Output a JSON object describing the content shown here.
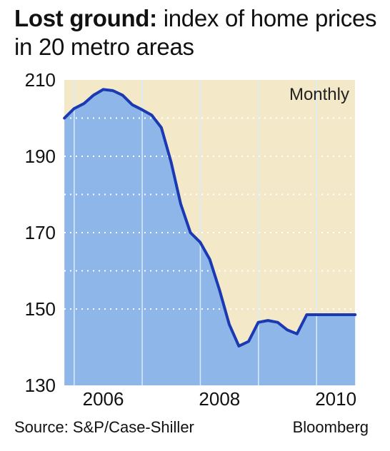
{
  "headline": {
    "bold": "Lost ground:",
    "rest": " index of home prices in 20 metro areas"
  },
  "source": "Source: S&P/Case-Shiller",
  "credit": "Bloomberg",
  "colors": {
    "plot_bg": "#f3e9c8",
    "area_fill": "#8fb6e8",
    "line": "#1a39b3",
    "grid": "#ffffff"
  },
  "chart_data": {
    "type": "area",
    "title": "",
    "xlabel": "",
    "ylabel": "",
    "annotation": "Monthly",
    "ylim": [
      130,
      210
    ],
    "y_ticks": [
      210,
      190,
      170,
      150,
      130
    ],
    "x_ticks": [
      "2006",
      "2008",
      "2010"
    ],
    "xlim": [
      2005.33,
      2010.33
    ],
    "grid": true,
    "series": [
      {
        "x": [
          2005.333,
          2005.5,
          2005.667,
          2005.833,
          2006.0,
          2006.167,
          2006.333,
          2006.5,
          2006.667,
          2006.833,
          2007.0,
          2007.167,
          2007.333,
          2007.5,
          2007.667,
          2007.833,
          2008.0,
          2008.167,
          2008.333,
          2008.5,
          2008.667,
          2008.833,
          2009.0,
          2009.083,
          2009.167,
          2009.333,
          2009.5,
          2009.667,
          2009.833,
          2010.0,
          2010.083,
          2010.167,
          2010.333
        ],
        "y": [
          200.0,
          202.5,
          203.8,
          206.0,
          207.5,
          207.2,
          206.0,
          203.5,
          202.2,
          200.8,
          197.5,
          188.5,
          177.5,
          170.0,
          167.5,
          163.0,
          155.0,
          146.0,
          140.3,
          141.5,
          146.5,
          147.0,
          146.5,
          145.5,
          144.5,
          143.5,
          148.5,
          148.5,
          148.5,
          148.5,
          148.5,
          148.5,
          148.5
        ]
      }
    ]
  }
}
